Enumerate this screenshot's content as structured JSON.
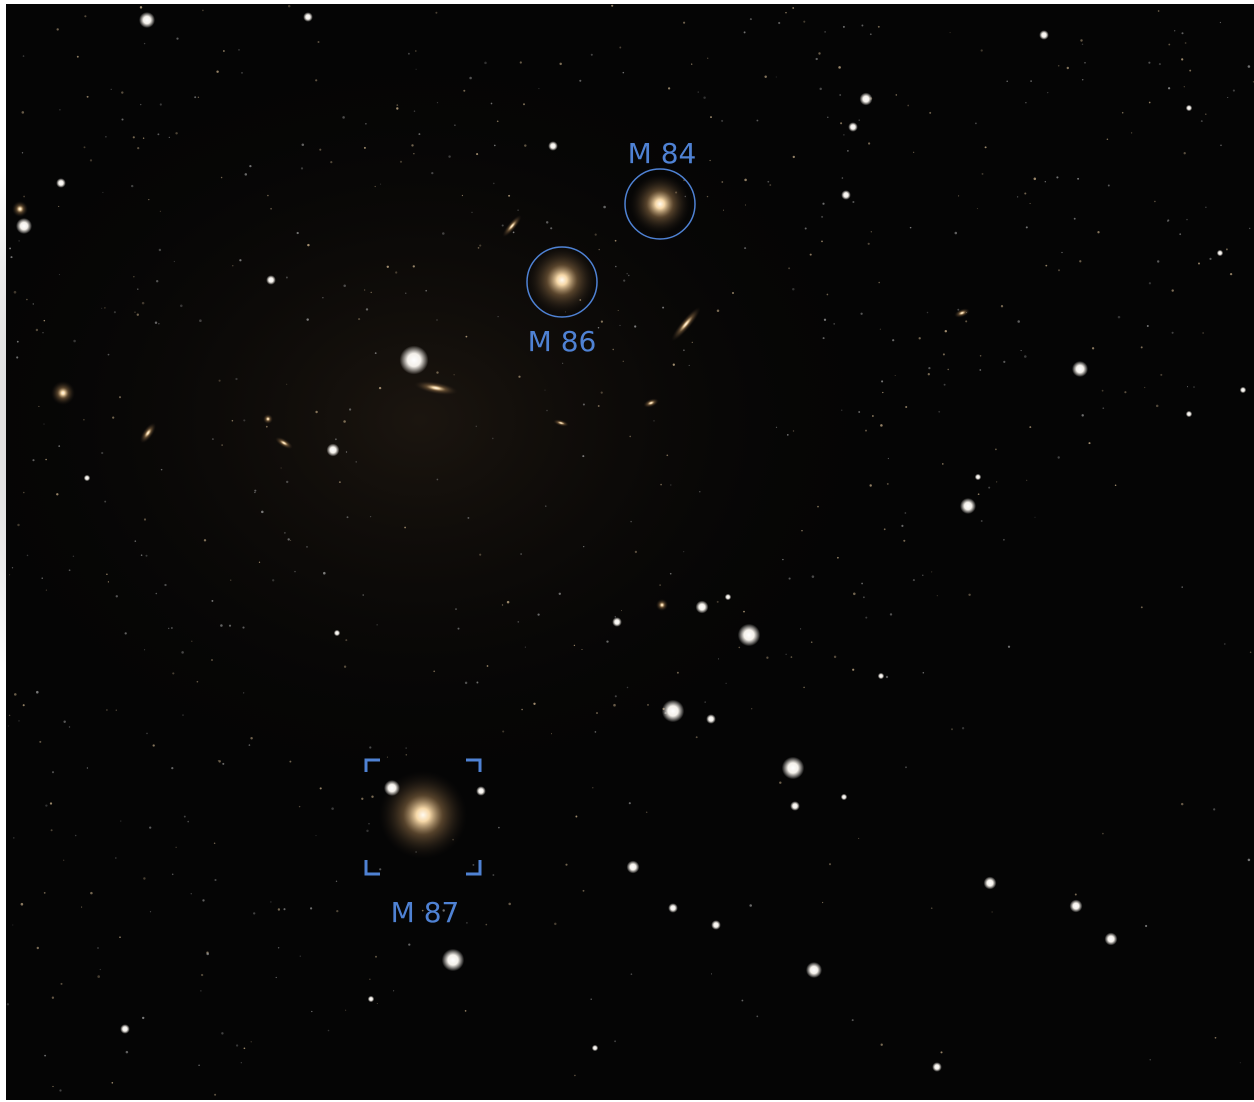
{
  "annotations": [
    {
      "label": "M 84"
    },
    {
      "label": "M 86"
    },
    {
      "label": "M 87"
    }
  ]
}
